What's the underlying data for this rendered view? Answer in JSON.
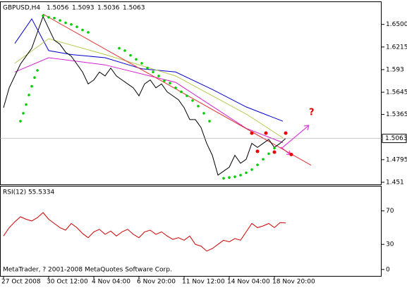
{
  "chart_data": [
    {
      "type": "line",
      "title": "GBPUSD,H4",
      "ohlc": [
        1.5056,
        1.5093,
        1.5036,
        1.5063
      ],
      "x": [
        0,
        2,
        4,
        6,
        8,
        10,
        12,
        14,
        16,
        18,
        20,
        22,
        24,
        26,
        28,
        30,
        32,
        34,
        36,
        38,
        40,
        42,
        44,
        46,
        48,
        50,
        52,
        54,
        56,
        58,
        60,
        62,
        64,
        66,
        68,
        70,
        72,
        74,
        76,
        78,
        80,
        82,
        84,
        86,
        88,
        90,
        92,
        94,
        96,
        98,
        100
      ],
      "values": [
        1.545,
        1.57,
        1.585,
        1.6,
        1.61,
        1.62,
        1.64,
        1.66,
        1.645,
        1.63,
        1.625,
        1.615,
        1.61,
        1.6,
        1.59,
        1.575,
        1.58,
        1.59,
        1.585,
        1.595,
        1.585,
        1.58,
        1.575,
        1.57,
        1.56,
        1.575,
        1.58,
        1.57,
        1.575,
        1.565,
        1.56,
        1.555,
        1.545,
        1.53,
        1.53,
        1.52,
        1.5,
        1.485,
        1.46,
        1.465,
        1.47,
        1.485,
        1.475,
        1.48,
        1.5,
        1.495,
        1.5,
        1.505,
        1.495,
        1.5,
        1.5063
      ],
      "color": "#000000",
      "averages": [
        {
          "color": "#0000cc",
          "x": [
            4,
            10,
            16,
            24,
            36,
            49,
            61,
            74,
            86,
            99
          ],
          "values": [
            1.626,
            1.657,
            1.617,
            1.612,
            1.608,
            1.594,
            1.59,
            1.568,
            1.546,
            1.528
          ]
        },
        {
          "color": "#b8c850",
          "x": [
            4,
            16,
            36,
            61,
            86,
            99
          ],
          "values": [
            1.601,
            1.632,
            1.612,
            1.585,
            1.537,
            1.507
          ]
        },
        {
          "color": "#d020d0",
          "x": [
            4,
            16,
            36,
            61,
            86,
            99
          ],
          "values": [
            1.59,
            1.608,
            1.599,
            1.577,
            1.519,
            1.501
          ]
        },
        {
          "color": "#e03030",
          "x": [
            14,
            109
          ],
          "values": [
            1.663,
            1.4725
          ]
        }
      ],
      "sar": {
        "color": "#00cc00",
        "x": [
          6,
          7,
          8,
          9,
          10,
          11,
          12,
          14,
          16,
          18,
          20,
          22,
          24,
          26,
          28,
          30,
          41,
          43,
          45,
          47,
          49,
          51,
          53,
          55,
          57,
          59,
          61,
          63,
          65,
          67,
          69,
          71,
          73,
          78,
          80,
          82,
          84,
          86,
          88,
          90,
          92,
          94,
          96
        ],
        "values": [
          1.528,
          1.538,
          1.549,
          1.561,
          1.572,
          1.583,
          1.592,
          1.661,
          1.659,
          1.658,
          1.655,
          1.652,
          1.65,
          1.647,
          1.643,
          1.64,
          1.62,
          1.617,
          1.611,
          1.606,
          1.601,
          1.595,
          1.59,
          1.585,
          1.579,
          1.576,
          1.57,
          1.565,
          1.56,
          1.554,
          1.547,
          1.538,
          1.528,
          1.456,
          1.457,
          1.458,
          1.46,
          1.463,
          1.467,
          1.473,
          1.48,
          1.487,
          1.494
        ]
      },
      "fractals": {
        "color": "#ee0000",
        "x": [
          88,
          93,
          100,
          90,
          96,
          102
        ],
        "values": [
          1.513,
          1.513,
          1.513,
          1.49,
          1.489,
          1.486
        ]
      },
      "annotation": "?",
      "current_price": 1.5063,
      "xlim": [
        -1.25,
        134
      ],
      "ylim": [
        1.4483,
        1.679
      ],
      "yticks": [
        {
          "value": 1.65,
          "label": "1.6500"
        },
        1.6215,
        1.593,
        1.5645,
        1.5365,
        1.4795,
        1.451
      ]
    },
    {
      "type": "line",
      "title": "RSI(12) 55.5334",
      "color": "#cc0000",
      "x": [
        0,
        2,
        4,
        6,
        8,
        10,
        12,
        14,
        16,
        18,
        20,
        22,
        24,
        26,
        28,
        30,
        32,
        34,
        36,
        38,
        40,
        42,
        44,
        46,
        48,
        50,
        52,
        54,
        56,
        58,
        60,
        62,
        64,
        66,
        68,
        70,
        72,
        74,
        76,
        78,
        80,
        82,
        84,
        86,
        88,
        90,
        92,
        94,
        96,
        98,
        100
      ],
      "values": [
        40,
        50,
        57,
        63,
        60,
        58,
        62,
        68,
        60,
        55,
        50,
        47,
        55,
        50,
        43,
        38,
        45,
        48,
        42,
        46,
        40,
        45,
        48,
        42,
        38,
        45,
        47,
        42,
        45,
        40,
        36,
        38,
        35,
        40,
        30,
        28,
        22,
        25,
        30,
        35,
        33,
        37,
        35,
        45,
        55,
        50,
        52,
        55,
        50,
        56,
        55.5334
      ],
      "footer": "MetaTrader, ? 2001-2008 MetaQuotes Software Corp.",
      "xlim": [
        -1.25,
        134
      ],
      "ylim": [
        -7.7,
        100
      ],
      "yticks": [
        70,
        30,
        0
      ],
      "xticks": [
        {
          "value": 0,
          "label": "27 Oct 2008"
        },
        {
          "value": 16,
          "label": "30 Oct 12:00"
        },
        {
          "value": 32,
          "label": "4 Nov 04:00"
        },
        {
          "value": 48,
          "label": "6 Nov 20:00"
        },
        {
          "value": 64,
          "label": "11 Nov 12:00"
        },
        {
          "value": 80,
          "label": "14 Nov 04:00"
        },
        {
          "value": 96,
          "label": "18 Nov 20:00"
        }
      ]
    }
  ]
}
